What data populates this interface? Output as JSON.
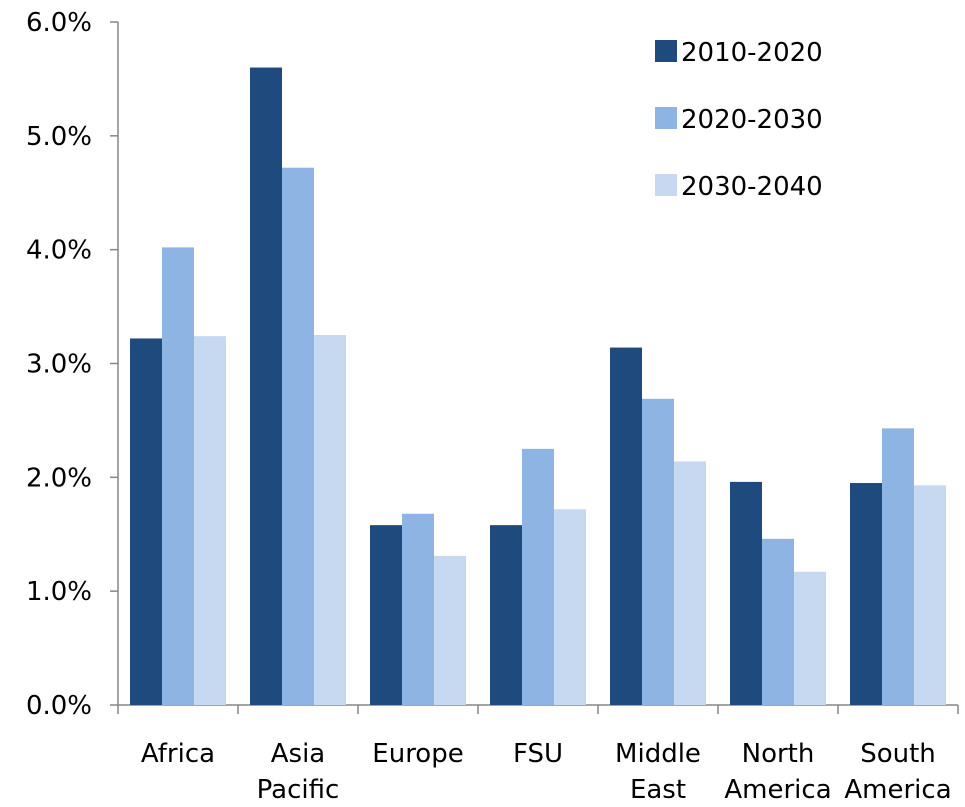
{
  "chart_data": {
    "type": "bar",
    "title": "",
    "xlabel": "",
    "ylabel": "",
    "ylim": [
      0,
      0.06
    ],
    "y_ticks": [
      "0.0%",
      "1.0%",
      "2.0%",
      "3.0%",
      "4.0%",
      "5.0%",
      "6.0%"
    ],
    "y_tick_values": [
      0,
      0.01,
      0.02,
      0.03,
      0.04,
      0.05,
      0.06
    ],
    "categories": [
      [
        "Africa"
      ],
      [
        "Asia",
        "Pacific"
      ],
      [
        "Europe"
      ],
      [
        "FSU"
      ],
      [
        "Middle",
        "East"
      ],
      [
        "North",
        "America"
      ],
      [
        "South",
        "America"
      ]
    ],
    "series": [
      {
        "name": "2010-2020",
        "color": "#1f4a7d",
        "values": [
          0.0322,
          0.056,
          0.0158,
          0.0158,
          0.0314,
          0.0196,
          0.0195
        ]
      },
      {
        "name": "2020-2030",
        "color": "#8eb4e3",
        "values": [
          0.0402,
          0.0472,
          0.0168,
          0.0225,
          0.0269,
          0.0146,
          0.0243
        ]
      },
      {
        "name": "2030-2040",
        "color": "#c6d9f1",
        "values": [
          0.0324,
          0.0325,
          0.0131,
          0.0172,
          0.0214,
          0.0117,
          0.0193
        ]
      }
    ],
    "legend_position": "top-right",
    "grid": false
  }
}
